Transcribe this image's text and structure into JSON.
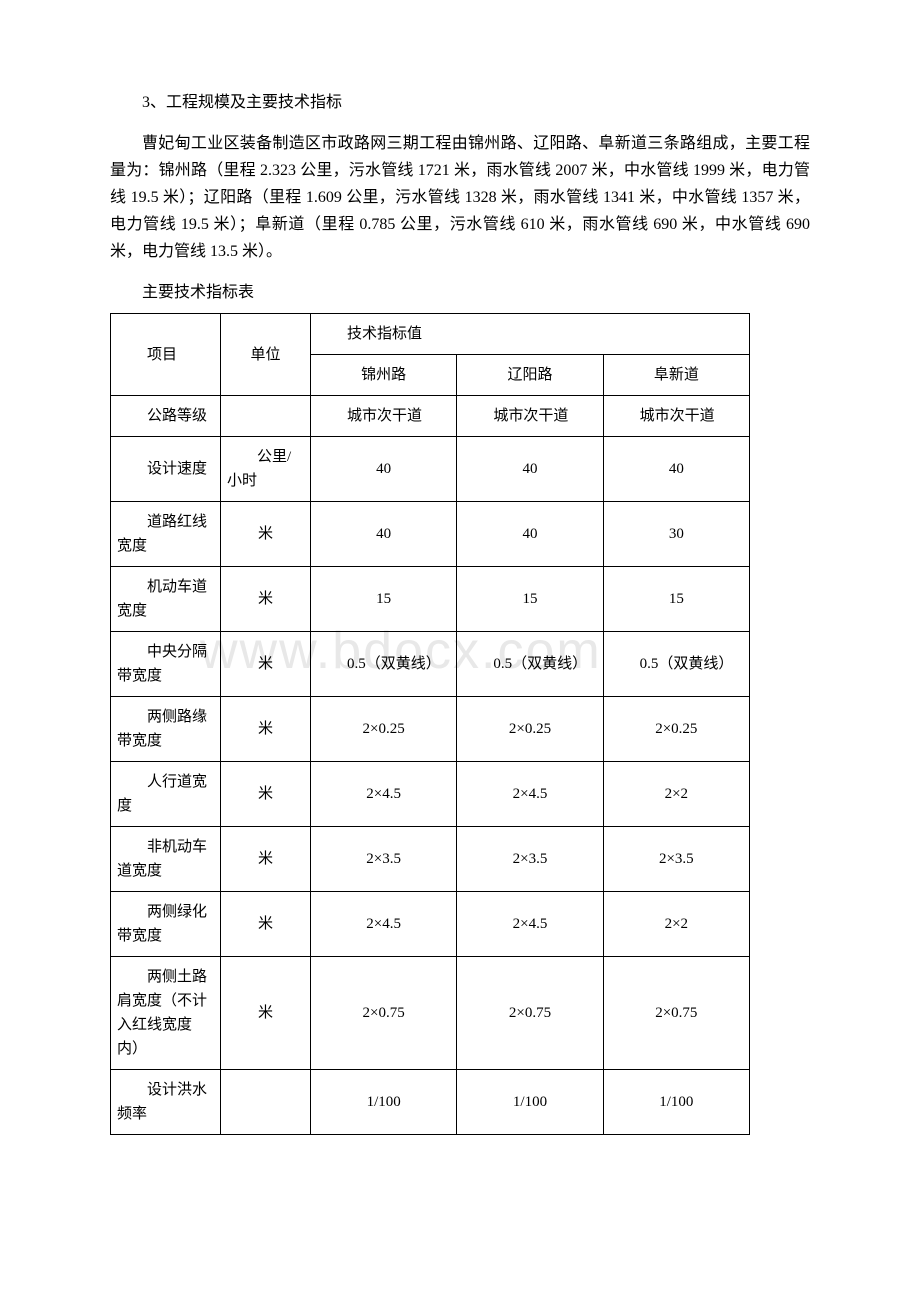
{
  "watermark": "www.bdocx.com",
  "section_title": "3、工程规模及主要技术指标",
  "paragraph": "曹妃甸工业区装备制造区市政路网三期工程由锦州路、辽阳路、阜新道三条路组成，主要工程量为：锦州路（里程 2.323 公里，污水管线 1721 米，雨水管线 2007 米，中水管线 1999 米，电力管线 19.5 米）；辽阳路（里程 1.609 公里，污水管线 1328 米，雨水管线 1341 米，中水管线 1357 米，电力管线 19.5 米）；阜新道（里程 0.785 公里，污水管线 610 米，雨水管线 690 米，中水管线 690 米，电力管线 13.5 米）。",
  "table_caption": "主要技术指标表",
  "table": {
    "columns": {
      "item": "项目",
      "unit": "单位",
      "tech_header": "技术指标值",
      "roads": [
        "锦州路",
        "辽阳路",
        "阜新道"
      ]
    },
    "rows": [
      {
        "item": "公路等级",
        "unit": "",
        "vals": [
          "城市次干道",
          "城市次干道",
          "城市次干道"
        ],
        "val_wrap": true
      },
      {
        "item": "设计速度",
        "unit": "公里/小时",
        "unit_wrap": true,
        "vals": [
          "40",
          "40",
          "40"
        ]
      },
      {
        "item": "道路红线宽度",
        "unit": "米",
        "vals": [
          "40",
          "40",
          "30"
        ]
      },
      {
        "item": "机动车道宽度",
        "unit": "米",
        "vals": [
          "15",
          "15",
          "15"
        ]
      },
      {
        "item": "中央分隔带宽度",
        "unit": "米",
        "vals": [
          "0.5（双黄线）",
          "0.5（双黄线）",
          "0.5（双黄线）"
        ],
        "val_wrap": true
      },
      {
        "item": "两侧路缘带宽度",
        "unit": "米",
        "vals": [
          "2×0.25",
          "2×0.25",
          "2×0.25"
        ]
      },
      {
        "item": "人行道宽度",
        "unit": "米",
        "vals": [
          "2×4.5",
          "2×4.5",
          "2×2"
        ]
      },
      {
        "item": "非机动车道宽度",
        "unit": "米",
        "vals": [
          "2×3.5",
          "2×3.5",
          "2×3.5"
        ]
      },
      {
        "item": "两侧绿化带宽度",
        "unit": "米",
        "vals": [
          "2×4.5",
          "2×4.5",
          "2×2"
        ]
      },
      {
        "item": "两侧土路肩宽度（不计入红线宽度内）",
        "unit": "米",
        "vals": [
          "2×0.75",
          "2×0.75",
          "2×0.75"
        ]
      },
      {
        "item": "设计洪水频率",
        "unit": "",
        "vals": [
          "1/100",
          "1/100",
          "1/100"
        ]
      }
    ]
  }
}
